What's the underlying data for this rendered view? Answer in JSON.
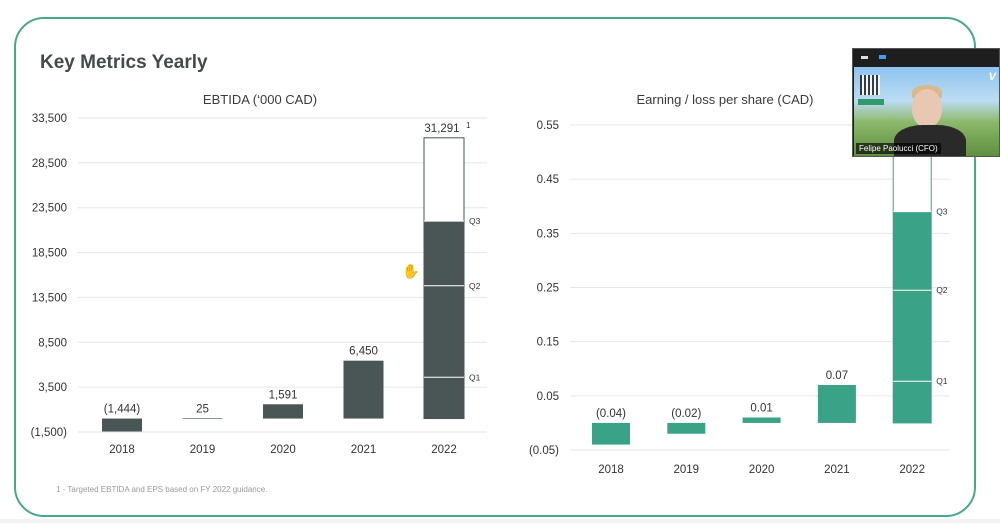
{
  "slide": {
    "title": "Key Metrics Yearly"
  },
  "footnote": "1 - Targeted EBTIDA and EPS based on FY 2022 guidance.",
  "webcam": {
    "name": "Felipe Paolucci (CFO)",
    "logo": "V"
  },
  "colors": {
    "frame": "#4aa88a",
    "ebitda_bar": "#4a5556",
    "eps_bar": "#3aa286",
    "grid": "#e6e6e6"
  },
  "chart_data": [
    {
      "type": "bar",
      "title": "EBTIDA (‘000 CAD)",
      "categories": [
        "2018",
        "2019",
        "2020",
        "2021",
        "2022"
      ],
      "values": [
        -1444,
        25,
        1591,
        6450,
        22000
      ],
      "value_labels": [
        "(1,444)",
        "25",
        "1,591",
        "6,450",
        ""
      ],
      "target": {
        "category": "2022",
        "value": 31291,
        "label": "31,291",
        "footnote_marker": "1"
      },
      "quarter_markers": [
        {
          "label": "Q1",
          "value": 4600
        },
        {
          "label": "Q2",
          "value": 14800
        },
        {
          "label": "Q3",
          "value": 22000
        }
      ],
      "yticks": [
        33500,
        28500,
        23500,
        18500,
        13500,
        8500,
        3500,
        -1500
      ],
      "ytick_labels": [
        "33,500",
        "28,500",
        "23,500",
        "18,500",
        "13,500",
        "8,500",
        "3,500",
        "(1,500)"
      ],
      "ylim": [
        -1500,
        33500
      ],
      "grid": true
    },
    {
      "type": "bar",
      "title": "Earning / loss per share (CAD)",
      "categories": [
        "2018",
        "2019",
        "2020",
        "2021",
        "2022"
      ],
      "values": [
        -0.04,
        -0.02,
        0.01,
        0.07,
        0.39
      ],
      "value_labels": [
        "(0.04)",
        "(0.02)",
        "0.01",
        "0.07",
        ""
      ],
      "target": {
        "category": "2022",
        "value": 0.62
      },
      "quarter_markers": [
        {
          "label": "Q1",
          "value": 0.077
        },
        {
          "label": "Q2",
          "value": 0.245
        },
        {
          "label": "Q3",
          "value": 0.39
        }
      ],
      "yticks": [
        0.55,
        0.45,
        0.35,
        0.25,
        0.15,
        0.05,
        -0.05
      ],
      "ytick_labels": [
        "0.55",
        "0.45",
        "0.35",
        "0.25",
        "0.15",
        "0.05",
        "(0.05)"
      ],
      "ylim": [
        -0.05,
        0.55
      ],
      "grid": true
    }
  ]
}
